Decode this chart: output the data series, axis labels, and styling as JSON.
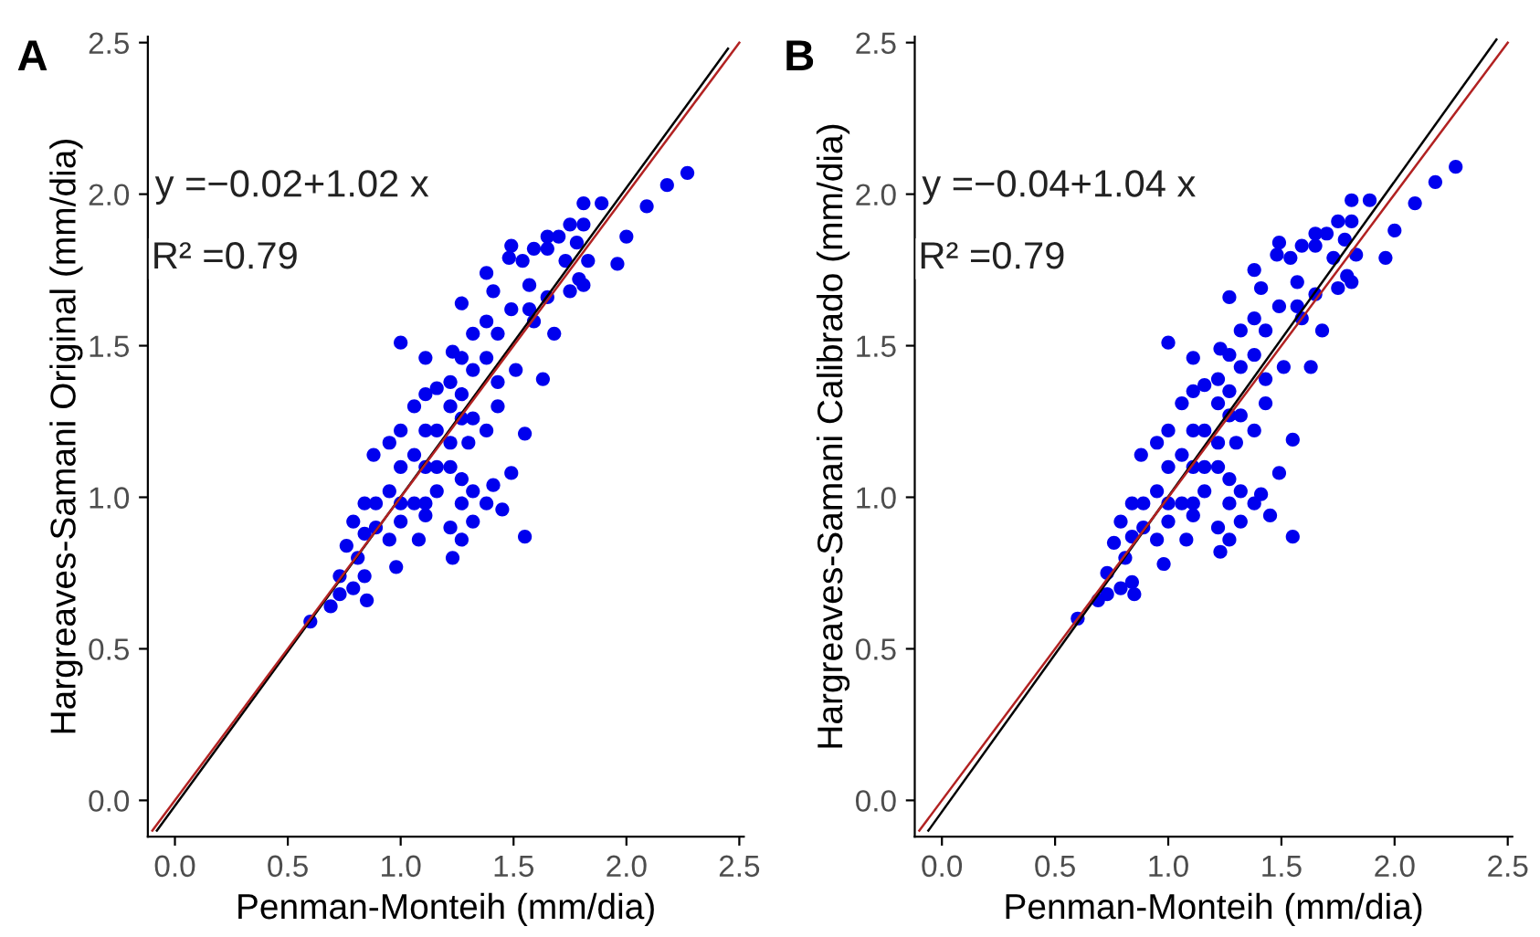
{
  "chart_data": [
    {
      "type": "scatter",
      "title": "A",
      "xlabel": "Penman-Monteih (mm/dia)",
      "ylabel": "Hargreaves-Samani Original (mm/dia)",
      "annotations": [
        "y =−0.02+1.02 x",
        "R² =0.79"
      ],
      "xlim": [
        -0.12,
        2.52
      ],
      "ylim": [
        -0.12,
        2.52
      ],
      "xticks": [
        {
          "value": 0,
          "label": "0.0"
        },
        0.5,
        {
          "value": 1,
          "label": "1.0"
        },
        1.5,
        {
          "value": 2,
          "label": "2.0"
        },
        2.5
      ],
      "yticks": [
        {
          "value": 0,
          "label": "0.0"
        },
        0.5,
        {
          "value": 1,
          "label": "1.0"
        },
        1.5,
        {
          "value": 2,
          "label": "2.0"
        },
        2.5
      ],
      "grid": false,
      "legend": false,
      "series": [
        {
          "marker": "circle",
          "color": "#0000ee",
          "x": [
            2.27,
            2.18,
            2.09,
            2.0,
            1.96,
            1.89,
            1.81,
            1.83,
            1.79,
            1.75,
            1.7,
            1.65,
            1.63,
            1.55,
            1.49,
            1.45,
            1.55,
            1.41,
            1.49,
            1.48,
            1.0,
            1.23,
            1.27,
            1.38,
            1.57,
            1.59,
            1.68,
            1.51,
            1.43,
            1.32,
            1.22,
            1.11,
            1.06,
            1.11,
            1.0,
            0.95,
            0.88,
            1.0,
            1.11,
            1.22,
            1.3,
            1.38,
            1.27,
            0.95,
            0.84,
            0.89,
            1.0,
            1.11,
            1.22,
            1.27,
            1.23,
            1.08,
            0.98,
            0.84,
            0.76,
            0.81,
            0.73,
            0.85,
            0.84,
            0.69,
            0.6,
            0.73,
            1.32,
            1.38,
            1.16,
            1.27,
            1.06,
            1.49,
            1.43,
            1.32,
            1.22,
            1.11,
            1.54,
            1.59,
            1.65,
            1.73,
            1.78,
            1.81,
            1.57,
            1.65,
            1.75,
            1.81,
            1.41,
            1.38,
            1.27,
            1.38,
            1.16,
            1.27,
            1.43,
            1.32,
            1.16,
            1.22,
            1.06,
            1.16,
            1.27,
            1.32,
            0.89,
            1.0,
            1.11,
            0.95,
            0.79,
            0.79
          ],
          "values": [
            2.07,
            2.03,
            1.96,
            1.86,
            1.77,
            1.97,
            1.97,
            1.78,
            1.72,
            1.9,
            1.86,
            1.82,
            1.39,
            1.21,
            1.08,
            0.96,
            0.87,
            1.04,
            1.83,
            1.79,
            1.51,
            1.48,
            1.64,
            1.74,
            1.7,
            1.58,
            1.54,
            1.42,
            1.38,
            1.42,
            1.38,
            1.34,
            1.3,
            1.22,
            1.22,
            1.18,
            1.14,
            1.1,
            1.1,
            1.1,
            1.18,
            1.22,
            1.26,
            1.02,
            0.98,
            0.9,
            0.92,
            0.94,
            0.9,
            0.86,
            0.8,
            0.86,
            0.77,
            0.88,
            0.84,
            0.8,
            0.74,
            0.66,
            0.74,
            0.64,
            0.59,
            0.68,
            0.92,
            0.98,
            1.02,
            0.98,
            0.98,
            1.62,
            1.54,
            1.54,
            1.3,
            1.46,
            1.78,
            1.82,
            1.86,
            1.78,
            1.84,
            1.9,
            1.62,
            1.66,
            1.68,
            1.7,
            1.68,
            1.58,
            1.46,
            1.46,
            1.36,
            1.34,
            1.3,
            1.26,
            1.22,
            1.18,
            1.14,
            1.1,
            1.06,
            1.02,
            0.98,
            0.98,
            0.98,
            0.86,
            0.92,
            0.7
          ]
        },
        {
          "type": "line",
          "color": "#000000",
          "x": [
            -0.08,
            2.45
          ],
          "values": [
            -0.1,
            2.48
          ]
        },
        {
          "type": "line",
          "color": "#b22222",
          "x": [
            -0.1,
            2.5
          ],
          "values": [
            -0.1,
            2.5
          ]
        }
      ]
    },
    {
      "type": "scatter",
      "title": "B",
      "xlabel": "Penman-Monteih (mm/dia)",
      "ylabel": "Hargreaves-Samani Calibrado (mm/dia)",
      "annotations": [
        "y =−0.04+1.04 x",
        "R² =0.79"
      ],
      "xlim": [
        -0.12,
        2.52
      ],
      "ylim": [
        -0.12,
        2.52
      ],
      "xticks": [
        {
          "value": 0,
          "label": "0.0"
        },
        0.5,
        {
          "value": 1,
          "label": "1.0"
        },
        1.5,
        {
          "value": 2,
          "label": "2.0"
        },
        2.5
      ],
      "yticks": [
        {
          "value": 0,
          "label": "0.0"
        },
        0.5,
        {
          "value": 1,
          "label": "1.0"
        },
        1.5,
        {
          "value": 2,
          "label": "2.0"
        },
        2.5
      ],
      "grid": false,
      "legend": false,
      "series": [
        {
          "marker": "circle",
          "color": "#0000ee",
          "x": [
            2.27,
            2.18,
            2.09,
            2.0,
            1.96,
            1.89,
            1.81,
            1.83,
            1.79,
            1.75,
            1.7,
            1.65,
            1.63,
            1.55,
            1.49,
            1.45,
            1.55,
            1.41,
            1.49,
            1.48,
            1.0,
            1.23,
            1.27,
            1.38,
            1.57,
            1.59,
            1.68,
            1.51,
            1.43,
            1.32,
            1.22,
            1.11,
            1.06,
            1.11,
            1.0,
            0.95,
            0.88,
            1.0,
            1.11,
            1.22,
            1.3,
            1.38,
            1.27,
            0.95,
            0.84,
            0.89,
            1.0,
            1.11,
            1.22,
            1.27,
            1.23,
            1.08,
            0.98,
            0.84,
            0.76,
            0.81,
            0.73,
            0.85,
            0.84,
            0.69,
            0.6,
            0.73,
            1.32,
            1.38,
            1.16,
            1.27,
            1.06,
            1.49,
            1.43,
            1.32,
            1.22,
            1.11,
            1.54,
            1.59,
            1.65,
            1.73,
            1.78,
            1.81,
            1.57,
            1.65,
            1.75,
            1.81,
            1.41,
            1.38,
            1.27,
            1.38,
            1.16,
            1.27,
            1.43,
            1.32,
            1.16,
            1.22,
            1.06,
            1.16,
            1.27,
            1.32,
            0.89,
            1.0,
            1.11,
            0.95,
            0.79,
            0.79
          ],
          "values": [
            2.09,
            2.04,
            1.97,
            1.88,
            1.79,
            1.98,
            1.98,
            1.8,
            1.73,
            1.91,
            1.87,
            1.83,
            1.43,
            1.19,
            1.08,
            0.94,
            0.87,
            1.01,
            1.84,
            1.8,
            1.51,
            1.49,
            1.66,
            1.75,
            1.71,
            1.59,
            1.55,
            1.43,
            1.39,
            1.43,
            1.39,
            1.35,
            1.31,
            1.22,
            1.22,
            1.18,
            1.14,
            1.1,
            1.1,
            1.1,
            1.18,
            1.22,
            1.27,
            1.02,
            0.98,
            0.9,
            0.92,
            0.94,
            0.9,
            0.86,
            0.82,
            0.86,
            0.78,
            0.87,
            0.85,
            0.8,
            0.75,
            0.68,
            0.72,
            0.66,
            0.6,
            0.68,
            0.92,
            0.98,
            1.02,
            0.98,
            0.98,
            1.63,
            1.55,
            1.55,
            1.31,
            1.46,
            1.79,
            1.83,
            1.87,
            1.79,
            1.85,
            1.91,
            1.63,
            1.67,
            1.69,
            1.71,
            1.69,
            1.59,
            1.47,
            1.47,
            1.37,
            1.35,
            1.31,
            1.27,
            1.22,
            1.18,
            1.14,
            1.1,
            1.06,
            1.02,
            0.98,
            0.98,
            0.98,
            0.86,
            0.92,
            0.7
          ]
        },
        {
          "type": "line",
          "color": "#000000",
          "x": [
            -0.06,
            2.45
          ],
          "values": [
            -0.1,
            2.51
          ]
        },
        {
          "type": "line",
          "color": "#b22222",
          "x": [
            -0.1,
            2.5
          ],
          "values": [
            -0.1,
            2.5
          ]
        }
      ]
    }
  ]
}
